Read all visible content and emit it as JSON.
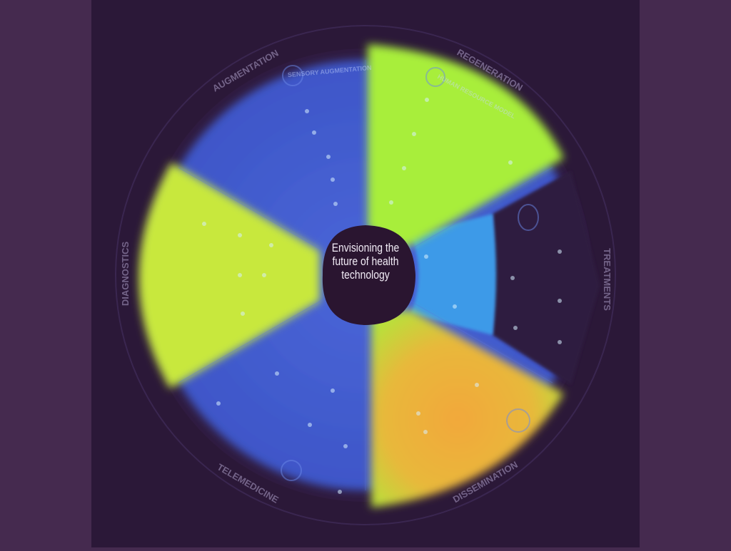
{
  "center": {
    "title": "Envisioning the future of health technology"
  },
  "ring_labels": [
    "AUGMENTATION",
    "REGENERATION",
    "TREATMENTS",
    "DIAGNOSTICS",
    "TELEMEDICINE",
    "DISSEMINATION"
  ],
  "sector_labels": [
    "SENSORY AUGMENTATION",
    "HUMAN RESOURCE MODEL"
  ],
  "colors": {
    "outer_background": "#452a4f",
    "panel_background": "#2b1838",
    "disc_blue": "#4a63d6",
    "disc_light_blue": "#3f9be8",
    "highlight_green": "#a8ee3a",
    "highlight_yellow": "#c8e83c",
    "highlight_orange": "#f2a83a",
    "center_dark": "#2a1530"
  },
  "icons": [
    "eye-icon",
    "scissors-icon",
    "balloon-icon",
    "wifi-icon",
    "stethoscope-icon"
  ]
}
